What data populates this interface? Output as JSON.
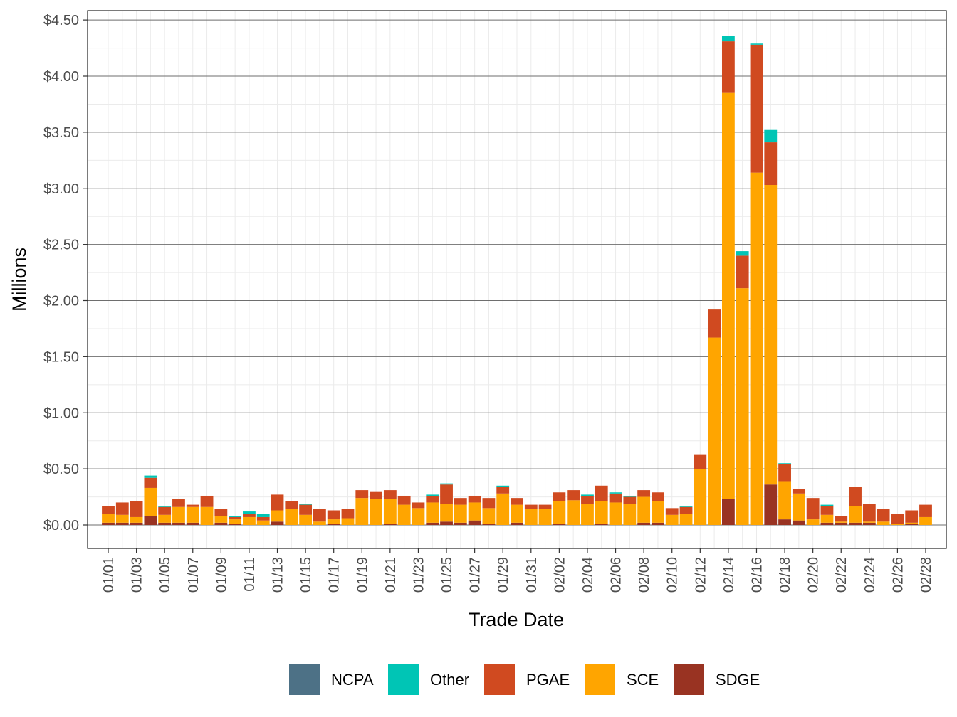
{
  "chart_data": {
    "type": "bar",
    "stacked": true,
    "title": "",
    "xlabel": "Trade Date",
    "ylabel": "Millions",
    "ylim": [
      0,
      4.5
    ],
    "y_ticks": [
      "$0.00",
      "$0.50",
      "$1.00",
      "$1.50",
      "$2.00",
      "$2.50",
      "$3.00",
      "$3.50",
      "$4.00",
      "$4.50"
    ],
    "y_tick_values": [
      0,
      0.5,
      1.0,
      1.5,
      2.0,
      2.5,
      3.0,
      3.5,
      4.0,
      4.5
    ],
    "grid": true,
    "legend_position": "bottom",
    "categories": [
      "01/01",
      "01/02",
      "01/03",
      "01/04",
      "01/05",
      "01/06",
      "01/07",
      "01/08",
      "01/09",
      "01/10",
      "01/11",
      "01/12",
      "01/13",
      "01/14",
      "01/15",
      "01/16",
      "01/17",
      "01/18",
      "01/19",
      "01/20",
      "01/21",
      "01/22",
      "01/23",
      "01/24",
      "01/25",
      "01/26",
      "01/27",
      "01/28",
      "01/29",
      "01/30",
      "01/31",
      "02/01",
      "02/02",
      "02/03",
      "02/04",
      "02/05",
      "02/06",
      "02/07",
      "02/08",
      "02/09",
      "02/10",
      "02/11",
      "02/12",
      "02/13",
      "02/14",
      "02/15",
      "02/16",
      "02/17",
      "02/18",
      "02/19",
      "02/20",
      "02/21",
      "02/22",
      "02/23",
      "02/24",
      "02/25",
      "02/26",
      "02/27",
      "02/28"
    ],
    "x_tick_labels": [
      "01/01",
      "01/03",
      "01/05",
      "01/07",
      "01/09",
      "01/11",
      "01/13",
      "01/15",
      "01/17",
      "01/19",
      "01/21",
      "01/23",
      "01/25",
      "01/27",
      "01/29",
      "01/31",
      "02/02",
      "02/04",
      "02/06",
      "02/08",
      "02/10",
      "02/12",
      "02/14",
      "02/16",
      "02/18",
      "02/20",
      "02/22",
      "02/24",
      "02/26",
      "02/28"
    ],
    "series": [
      {
        "name": "SDGE",
        "color": "#993322",
        "values": [
          0.02,
          0.02,
          0.02,
          0.08,
          0.02,
          0.02,
          0.02,
          0.0,
          0.02,
          0.01,
          0.0,
          0.0,
          0.03,
          0.0,
          0.0,
          0.0,
          0.01,
          0.0,
          0.0,
          0.0,
          0.01,
          0.0,
          0.0,
          0.02,
          0.03,
          0.02,
          0.04,
          0.01,
          0.0,
          0.02,
          0.0,
          0.0,
          0.01,
          0.0,
          0.0,
          0.01,
          0.0,
          0.0,
          0.02,
          0.02,
          0.0,
          0.0,
          0.0,
          0.0,
          0.23,
          0.0,
          0.0,
          0.36,
          0.05,
          0.04,
          0.0,
          0.02,
          0.02,
          0.02,
          0.02,
          0.0,
          0.0,
          0.01,
          0.0
        ]
      },
      {
        "name": "SCE",
        "color": "#FFA500",
        "values": [
          0.08,
          0.07,
          0.05,
          0.25,
          0.07,
          0.14,
          0.14,
          0.16,
          0.06,
          0.04,
          0.07,
          0.04,
          0.1,
          0.14,
          0.09,
          0.03,
          0.04,
          0.06,
          0.24,
          0.23,
          0.22,
          0.18,
          0.15,
          0.18,
          0.16,
          0.16,
          0.16,
          0.14,
          0.28,
          0.16,
          0.14,
          0.14,
          0.2,
          0.22,
          0.19,
          0.2,
          0.2,
          0.19,
          0.23,
          0.19,
          0.09,
          0.1,
          0.5,
          1.67,
          3.62,
          2.11,
          3.14,
          2.67,
          0.34,
          0.24,
          0.05,
          0.07,
          0.01,
          0.15,
          0.01,
          0.03,
          0.01,
          0.01,
          0.07
        ]
      },
      {
        "name": "PGAE",
        "color": "#D04A20",
        "values": [
          0.07,
          0.11,
          0.14,
          0.09,
          0.07,
          0.07,
          0.02,
          0.1,
          0.06,
          0.02,
          0.03,
          0.03,
          0.14,
          0.07,
          0.09,
          0.11,
          0.08,
          0.08,
          0.07,
          0.07,
          0.08,
          0.08,
          0.05,
          0.06,
          0.17,
          0.06,
          0.06,
          0.09,
          0.06,
          0.06,
          0.04,
          0.04,
          0.08,
          0.09,
          0.07,
          0.14,
          0.08,
          0.06,
          0.06,
          0.08,
          0.06,
          0.06,
          0.13,
          0.25,
          0.46,
          0.29,
          1.14,
          0.38,
          0.15,
          0.04,
          0.19,
          0.08,
          0.05,
          0.17,
          0.16,
          0.11,
          0.09,
          0.11,
          0.11
        ]
      },
      {
        "name": "Other",
        "color": "#00C5B5",
        "values": [
          0.0,
          0.0,
          0.0,
          0.02,
          0.01,
          0.0,
          0.0,
          0.0,
          0.0,
          0.01,
          0.02,
          0.03,
          0.0,
          0.0,
          0.01,
          0.0,
          0.0,
          0.0,
          0.0,
          0.0,
          0.0,
          0.0,
          0.0,
          0.01,
          0.01,
          0.0,
          0.0,
          0.0,
          0.01,
          0.0,
          0.0,
          0.0,
          0.0,
          0.0,
          0.01,
          0.0,
          0.01,
          0.01,
          0.0,
          0.0,
          0.0,
          0.01,
          0.0,
          0.0,
          0.05,
          0.04,
          0.01,
          0.11,
          0.01,
          0.0,
          0.0,
          0.01,
          0.0,
          0.0,
          0.0,
          0.0,
          0.0,
          0.0,
          0.0
        ]
      },
      {
        "name": "NCPA",
        "color": "#4D7186",
        "values": [
          0.0,
          0.0,
          0.0,
          0.0,
          0.0,
          0.0,
          0.0,
          0.0,
          0.0,
          0.0,
          0.0,
          0.0,
          0.0,
          0.0,
          0.0,
          0.0,
          0.0,
          0.0,
          0.0,
          0.0,
          0.0,
          0.0,
          0.0,
          0.0,
          0.0,
          0.0,
          0.0,
          0.0,
          0.0,
          0.0,
          0.0,
          0.0,
          0.0,
          0.0,
          0.0,
          0.0,
          0.0,
          0.0,
          0.0,
          0.0,
          0.0,
          0.0,
          0.0,
          0.0,
          0.0,
          0.0,
          0.0,
          0.0,
          0.0,
          0.0,
          0.0,
          0.0,
          0.0,
          0.0,
          0.0,
          0.0,
          0.0,
          0.0,
          0.0
        ]
      }
    ],
    "legend": [
      {
        "name": "NCPA",
        "color": "#4D7186"
      },
      {
        "name": "Other",
        "color": "#00C5B5"
      },
      {
        "name": "PGAE",
        "color": "#D04A20"
      },
      {
        "name": "SCE",
        "color": "#FFA500"
      },
      {
        "name": "SDGE",
        "color": "#993322"
      }
    ]
  }
}
